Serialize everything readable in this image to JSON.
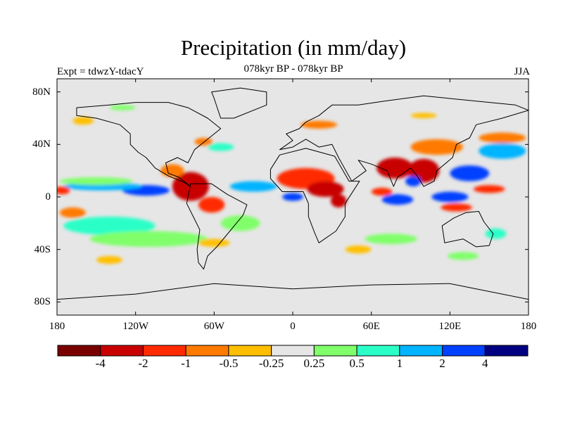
{
  "title": "Precipitation (in mm/day)",
  "subtitle": "078kyr BP - 078kyr BP",
  "left_label": "Expt = tdwzY-tdacY",
  "right_label": "JJA",
  "y_axis": {
    "ticks": [
      {
        "label": "80N",
        "lat": 80
      },
      {
        "label": "40N",
        "lat": 40
      },
      {
        "label": "0",
        "lat": 0
      },
      {
        "label": "40S",
        "lat": -40
      },
      {
        "label": "80S",
        "lat": -80
      }
    ],
    "range": [
      -90,
      90
    ]
  },
  "x_axis": {
    "ticks": [
      {
        "label": "180",
        "lon": -180
      },
      {
        "label": "120W",
        "lon": -120
      },
      {
        "label": "60W",
        "lon": -60
      },
      {
        "label": "0",
        "lon": 0
      },
      {
        "label": "60E",
        "lon": 60
      },
      {
        "label": "120E",
        "lon": 120
      },
      {
        "label": "180",
        "lon": 180
      }
    ],
    "range": [
      -180,
      180
    ]
  },
  "colorbar": {
    "colors": [
      "#7a0000",
      "#c80000",
      "#ff2a00",
      "#ff7a00",
      "#ffbf00",
      "#e6e6e6",
      "#80ff6a",
      "#2affc8",
      "#00b4ff",
      "#0040ff",
      "#000080"
    ],
    "labels": [
      "-4",
      "-2",
      "-1",
      "-0.5",
      "-0.25",
      "0.25",
      "0.5",
      "1",
      "2",
      "4"
    ]
  },
  "background_color": "#e6e6e6",
  "anomaly_regions": [
    {
      "name": "central-america-andes-dry",
      "lon": -78,
      "lat": 8,
      "rlon": 14,
      "rlat": 11,
      "color": "#c80000"
    },
    {
      "name": "amazon-dry",
      "lon": -62,
      "lat": -6,
      "rlon": 10,
      "rlat": 6,
      "color": "#ff2a00"
    },
    {
      "name": "gulf-mexico-dry",
      "lon": -92,
      "lat": 20,
      "rlon": 9,
      "rlat": 5,
      "color": "#ff7a00"
    },
    {
      "name": "east-pacific-wet",
      "lon": -112,
      "lat": 5,
      "rlon": 18,
      "rlat": 4,
      "color": "#0040ff"
    },
    {
      "name": "east-pacific-wet-band",
      "lon": -145,
      "lat": 8,
      "rlon": 30,
      "rlat": 3,
      "color": "#00b4ff"
    },
    {
      "name": "tropical-pacific-green",
      "lon": -150,
      "lat": 12,
      "rlon": 28,
      "rlat": 3,
      "color": "#80ff6a"
    },
    {
      "name": "subtropical-pacific-cyan",
      "lon": -140,
      "lat": -22,
      "rlon": 35,
      "rlat": 7,
      "color": "#2affc8"
    },
    {
      "name": "south-pacific-green",
      "lon": -110,
      "lat": -32,
      "rlon": 45,
      "rlat": 6,
      "color": "#80ff6a"
    },
    {
      "name": "pacific-orange-south",
      "lon": -168,
      "lat": -12,
      "rlon": 10,
      "rlat": 4,
      "color": "#ff7a00"
    },
    {
      "name": "pacific-red-west",
      "lon": -176,
      "lat": 5,
      "rlon": 6,
      "rlat": 3,
      "color": "#ff2a00"
    },
    {
      "name": "atlantic-wet",
      "lon": -30,
      "lat": 8,
      "rlon": 18,
      "rlat": 4,
      "color": "#00b4ff"
    },
    {
      "name": "atlantic-green",
      "lon": -40,
      "lat": -20,
      "rlon": 15,
      "rlat": 6,
      "color": "#80ff6a"
    },
    {
      "name": "west-africa-dry",
      "lon": 10,
      "lat": 14,
      "rlon": 22,
      "rlat": 8,
      "color": "#ff2a00"
    },
    {
      "name": "sahel-dry-core",
      "lon": 25,
      "lat": 6,
      "rlon": 14,
      "rlat": 6,
      "color": "#c80000"
    },
    {
      "name": "gulf-guinea-wet",
      "lon": 0,
      "lat": 0,
      "rlon": 8,
      "rlat": 3,
      "color": "#0040ff"
    },
    {
      "name": "east-africa-dry",
      "lon": 35,
      "lat": -3,
      "rlon": 6,
      "rlat": 5,
      "color": "#c80000"
    },
    {
      "name": "india-dry",
      "lon": 78,
      "lat": 22,
      "rlon": 14,
      "rlat": 8,
      "color": "#c80000"
    },
    {
      "name": "indochina-dry",
      "lon": 100,
      "lat": 20,
      "rlon": 12,
      "rlat": 9,
      "color": "#c80000"
    },
    {
      "name": "china-orange",
      "lon": 110,
      "lat": 38,
      "rlon": 20,
      "rlat": 6,
      "color": "#ff7a00"
    },
    {
      "name": "bay-bengal-wet",
      "lon": 92,
      "lat": 12,
      "rlon": 6,
      "rlat": 4,
      "color": "#0040ff"
    },
    {
      "name": "indian-ocean-wet",
      "lon": 80,
      "lat": -2,
      "rlon": 12,
      "rlat": 4,
      "color": "#0040ff"
    },
    {
      "name": "indian-ocean-dry",
      "lon": 68,
      "lat": 4,
      "rlon": 8,
      "rlat": 3,
      "color": "#ff2a00"
    },
    {
      "name": "maritime-wet",
      "lon": 120,
      "lat": 0,
      "rlon": 14,
      "rlat": 4,
      "color": "#0040ff"
    },
    {
      "name": "maritime-dry",
      "lon": 125,
      "lat": -8,
      "rlon": 12,
      "rlat": 3,
      "color": "#ff2a00"
    },
    {
      "name": "west-pacific-wet",
      "lon": 135,
      "lat": 18,
      "rlon": 15,
      "rlat": 6,
      "color": "#0040ff"
    },
    {
      "name": "nw-pacific-cyan",
      "lon": 160,
      "lat": 35,
      "rlon": 18,
      "rlat": 6,
      "color": "#00b4ff"
    },
    {
      "name": "nw-pacific-orange",
      "lon": 160,
      "lat": 45,
      "rlon": 18,
      "rlat": 4,
      "color": "#ff7a00"
    },
    {
      "name": "west-pacific-dry",
      "lon": 150,
      "lat": 6,
      "rlon": 12,
      "rlat": 3,
      "color": "#ff2a00"
    },
    {
      "name": "north-atlantic-cyan",
      "lon": -55,
      "lat": 38,
      "rlon": 10,
      "rlat": 3,
      "color": "#2affc8"
    },
    {
      "name": "north-atlantic-orange",
      "lon": -68,
      "lat": 42,
      "rlon": 7,
      "rlat": 3,
      "color": "#ff7a00"
    },
    {
      "name": "europe-orange",
      "lon": 20,
      "lat": 55,
      "rlon": 14,
      "rlat": 3,
      "color": "#ff7a00"
    },
    {
      "name": "siberia-orange",
      "lon": 100,
      "lat": 62,
      "rlon": 10,
      "rlat": 2,
      "color": "#ffbf00"
    },
    {
      "name": "arctic-green",
      "lon": -130,
      "lat": 68,
      "rlon": 10,
      "rlat": 2,
      "color": "#80ff6a"
    },
    {
      "name": "southern-ocean-orange",
      "lon": -60,
      "lat": -35,
      "rlon": 12,
      "rlat": 3,
      "color": "#ffbf00"
    },
    {
      "name": "south-indian-green",
      "lon": 75,
      "lat": -32,
      "rlon": 20,
      "rlat": 4,
      "color": "#80ff6a"
    },
    {
      "name": "south-indian-orange",
      "lon": 50,
      "lat": -40,
      "rlon": 10,
      "rlat": 3,
      "color": "#ffbf00"
    },
    {
      "name": "south-pacific-orange",
      "lon": -140,
      "lat": -48,
      "rlon": 10,
      "rlat": 3,
      "color": "#ffbf00"
    },
    {
      "name": "southern-ocean-green",
      "lon": 130,
      "lat": -45,
      "rlon": 12,
      "rlat": 3,
      "color": "#80ff6a"
    },
    {
      "name": "australia-cyan",
      "lon": 155,
      "lat": -28,
      "rlon": 8,
      "rlat": 4,
      "color": "#2affc8"
    },
    {
      "name": "alaska-orange",
      "lon": -160,
      "lat": 58,
      "rlon": 8,
      "rlat": 3,
      "color": "#ffbf00"
    }
  ],
  "continents": [
    {
      "name": "north-america",
      "coords": [
        [
          -165,
          68
        ],
        [
          -140,
          70
        ],
        [
          -120,
          72
        ],
        [
          -95,
          72
        ],
        [
          -80,
          68
        ],
        [
          -65,
          60
        ],
        [
          -55,
          52
        ],
        [
          -65,
          44
        ],
        [
          -75,
          36
        ],
        [
          -80,
          26
        ],
        [
          -88,
          30
        ],
        [
          -97,
          26
        ],
        [
          -95,
          18
        ],
        [
          -87,
          15
        ],
        [
          -78,
          8
        ],
        [
          -85,
          12
        ],
        [
          -95,
          16
        ],
        [
          -105,
          22
        ],
        [
          -112,
          30
        ],
        [
          -118,
          34
        ],
        [
          -124,
          40
        ],
        [
          -124,
          48
        ],
        [
          -132,
          55
        ],
        [
          -150,
          60
        ],
        [
          -165,
          62
        ],
        [
          -165,
          68
        ]
      ]
    },
    {
      "name": "south-america",
      "coords": [
        [
          -78,
          10
        ],
        [
          -62,
          10
        ],
        [
          -50,
          2
        ],
        [
          -35,
          -6
        ],
        [
          -38,
          -14
        ],
        [
          -48,
          -26
        ],
        [
          -58,
          -38
        ],
        [
          -65,
          -45
        ],
        [
          -68,
          -55
        ],
        [
          -72,
          -50
        ],
        [
          -73,
          -40
        ],
        [
          -71,
          -25
        ],
        [
          -76,
          -15
        ],
        [
          -81,
          -5
        ],
        [
          -78,
          10
        ]
      ]
    },
    {
      "name": "greenland",
      "coords": [
        [
          -55,
          60
        ],
        [
          -45,
          60
        ],
        [
          -20,
          70
        ],
        [
          -20,
          80
        ],
        [
          -40,
          83
        ],
        [
          -62,
          80
        ],
        [
          -60,
          75
        ],
        [
          -55,
          60
        ]
      ]
    },
    {
      "name": "eurasia",
      "coords": [
        [
          -10,
          36
        ],
        [
          0,
          43
        ],
        [
          -5,
          48
        ],
        [
          5,
          52
        ],
        [
          10,
          57
        ],
        [
          20,
          62
        ],
        [
          30,
          70
        ],
        [
          50,
          70
        ],
        [
          70,
          73
        ],
        [
          100,
          77
        ],
        [
          140,
          73
        ],
        [
          170,
          70
        ],
        [
          180,
          66
        ],
        [
          160,
          60
        ],
        [
          140,
          55
        ],
        [
          135,
          45
        ],
        [
          125,
          40
        ],
        [
          122,
          30
        ],
        [
          110,
          20
        ],
        [
          108,
          12
        ],
        [
          100,
          8
        ],
        [
          95,
          16
        ],
        [
          90,
          22
        ],
        [
          80,
          15
        ],
        [
          77,
          8
        ],
        [
          72,
          20
        ],
        [
          60,
          25
        ],
        [
          50,
          28
        ],
        [
          56,
          20
        ],
        [
          45,
          12
        ],
        [
          35,
          30
        ],
        [
          30,
          40
        ],
        [
          20,
          38
        ],
        [
          10,
          44
        ],
        [
          0,
          38
        ],
        [
          -10,
          36
        ]
      ]
    },
    {
      "name": "africa",
      "coords": [
        [
          -17,
          21
        ],
        [
          -10,
          32
        ],
        [
          10,
          37
        ],
        [
          32,
          31
        ],
        [
          43,
          12
        ],
        [
          51,
          12
        ],
        [
          40,
          -5
        ],
        [
          40,
          -15
        ],
        [
          33,
          -26
        ],
        [
          20,
          -35
        ],
        [
          17,
          -28
        ],
        [
          12,
          -15
        ],
        [
          12,
          -5
        ],
        [
          8,
          4
        ],
        [
          -8,
          4
        ],
        [
          -17,
          14
        ],
        [
          -17,
          21
        ]
      ]
    },
    {
      "name": "australia",
      "coords": [
        [
          114,
          -22
        ],
        [
          123,
          -16
        ],
        [
          132,
          -12
        ],
        [
          142,
          -11
        ],
        [
          146,
          -19
        ],
        [
          153,
          -28
        ],
        [
          150,
          -37
        ],
        [
          140,
          -38
        ],
        [
          130,
          -32
        ],
        [
          116,
          -35
        ],
        [
          114,
          -22
        ]
      ]
    },
    {
      "name": "antarctica",
      "coords": [
        [
          -180,
          -78
        ],
        [
          -120,
          -74
        ],
        [
          -60,
          -66
        ],
        [
          0,
          -70
        ],
        [
          60,
          -67
        ],
        [
          120,
          -66
        ],
        [
          180,
          -78
        ],
        [
          180,
          -90
        ],
        [
          -180,
          -90
        ],
        [
          -180,
          -78
        ]
      ]
    }
  ]
}
